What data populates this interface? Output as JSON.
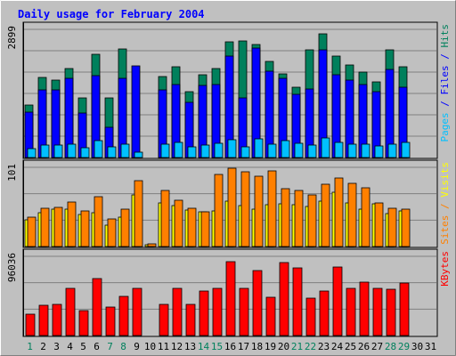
{
  "chart_data": {
    "type": "bar",
    "title": "Daily usage for February 2004",
    "categories": [
      "1",
      "2",
      "3",
      "4",
      "5",
      "6",
      "7",
      "8",
      "9",
      "10",
      "11",
      "12",
      "13",
      "14",
      "15",
      "16",
      "17",
      "18",
      "19",
      "20",
      "21",
      "22",
      "23",
      "24",
      "25",
      "26",
      "27",
      "28",
      "29",
      "30",
      "31"
    ],
    "weekend_days": [
      1,
      7,
      8,
      14,
      15,
      21,
      22,
      28,
      29
    ],
    "panels": [
      {
        "id": "requests",
        "ymax_label": "2899",
        "ylim": [
          0,
          2899
        ],
        "right_label_parts": [
          {
            "text": "Pages",
            "color": "#00C0FF"
          },
          {
            "text": " / ",
            "color": "#0000FF"
          },
          {
            "text": "Files",
            "color": "#0000FF"
          },
          {
            "text": " / ",
            "color": "#0000FF"
          },
          {
            "text": "Hits",
            "color": "#00805C"
          }
        ],
        "series": [
          {
            "name": "Hits",
            "color": "#00805C",
            "values": [
              1190,
              1810,
              1750,
              2010,
              1350,
              2330,
              1350,
              2450,
              110,
              0,
              1830,
              2050,
              1480,
              1870,
              2020,
              2610,
              2640,
              2560,
              2180,
              1890,
              1600,
              2440,
              2800,
              2300,
              2090,
              1930,
              1710,
              2440,
              2050,
              0,
              0
            ]
          },
          {
            "name": "Files",
            "color": "#0000FF",
            "values": [
              1020,
              1540,
              1520,
              1800,
              1000,
              1850,
              690,
              1800,
              2070,
              0,
              1520,
              1650,
              1250,
              1640,
              1650,
              2290,
              1350,
              2470,
              1950,
              1800,
              1420,
              1560,
              2440,
              1880,
              1760,
              1650,
              1480,
              2000,
              1600,
              0,
              0
            ]
          },
          {
            "name": "Pages",
            "color": "#00C0FF",
            "values": [
              210,
              280,
              280,
              300,
              220,
              390,
              240,
              300,
              120,
              0,
              300,
              350,
              250,
              280,
              320,
              400,
              250,
              420,
              310,
              390,
              320,
              280,
              440,
              350,
              300,
              310,
              270,
              300,
              350,
              0,
              0
            ]
          }
        ]
      },
      {
        "id": "visits",
        "ymax_label": "101",
        "ylim": [
          0,
          101
        ],
        "right_label_parts": [
          {
            "text": "Sites",
            "color": "#FF8000"
          },
          {
            "text": " / ",
            "color": "#FF8000"
          },
          {
            "text": "Visits",
            "color": "#FFFF00"
          }
        ],
        "series": [
          {
            "name": "Visits",
            "color": "#FFFF00",
            "values": [
              34,
              43,
              48,
              48,
              41,
              43,
              27,
              38,
              66,
              2,
              56,
              52,
              47,
              44,
              45,
              58,
              52,
              48,
              53,
              55,
              53,
              51,
              58,
              69,
              56,
              48,
              54,
              42,
              45,
              0,
              0
            ]
          },
          {
            "name": "Sites",
            "color": "#FF8000",
            "values": [
              38,
              49,
              50,
              57,
              45,
              63,
              35,
              48,
              84,
              3,
              72,
              59,
              49,
              44,
              92,
              100,
              95,
              90,
              97,
              74,
              72,
              66,
              80,
              87,
              81,
              75,
              56,
              49,
              48,
              0,
              0
            ]
          }
        ]
      },
      {
        "id": "kbytes",
        "ymax_label": "96036",
        "ylim": [
          0,
          96036
        ],
        "right_label_parts": [
          {
            "text": "KBytes",
            "color": "#FF0000"
          }
        ],
        "series": [
          {
            "name": "KBytes",
            "color": "#FF0000",
            "values": [
              26000,
              37000,
              38000,
              57000,
              30000,
              69000,
              34000,
              47000,
              57000,
              0,
              38000,
              57000,
              38000,
              54000,
              57000,
              90000,
              57000,
              79000,
              46000,
              89000,
              82000,
              45000,
              54000,
              83000,
              57000,
              65000,
              57000,
              56000,
              64000,
              0,
              0
            ]
          }
        ]
      }
    ]
  }
}
